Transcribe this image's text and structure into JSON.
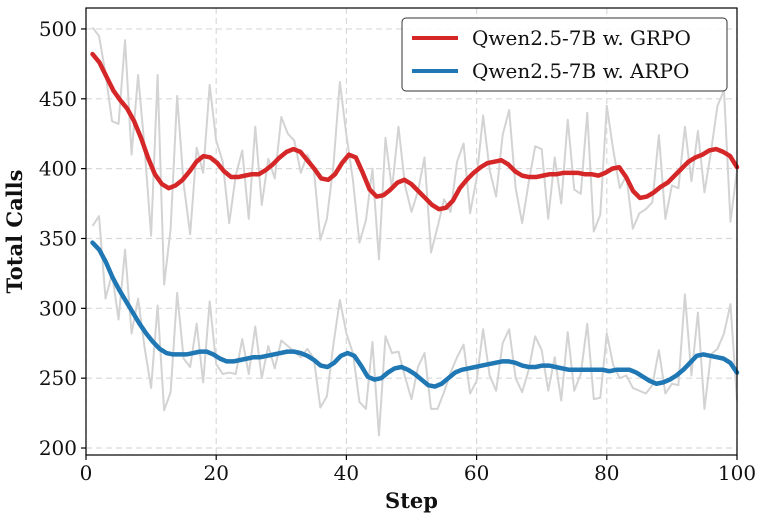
{
  "chart_data": {
    "type": "line",
    "xlabel": "Step",
    "ylabel": "Total Calls",
    "xlim": [
      0,
      100
    ],
    "ylim": [
      195,
      515
    ],
    "xticks": [
      0,
      20,
      40,
      60,
      80,
      100
    ],
    "yticks": [
      200,
      250,
      300,
      350,
      400,
      450,
      500
    ],
    "grid": true,
    "legend_position": "top-right",
    "raw_color": "#d3d3d3",
    "series": [
      {
        "name": "Qwen2.5-7B w. GRPO",
        "color": "#d62728",
        "smoothed": [
          482,
          476,
          466,
          456,
          449,
          443,
          434,
          422,
          408,
          396,
          389,
          386,
          388,
          392,
          398,
          405,
          409,
          408,
          404,
          398,
          394,
          394,
          395,
          396,
          396,
          399,
          403,
          408,
          412,
          414,
          412,
          406,
          400,
          393,
          392,
          396,
          404,
          410,
          408,
          397,
          385,
          380,
          381,
          385,
          390,
          392,
          389,
          384,
          379,
          374,
          371,
          372,
          377,
          386,
          392,
          397,
          401,
          404,
          405,
          406,
          403,
          398,
          395,
          394,
          394,
          395,
          396,
          396,
          397,
          397,
          397,
          396,
          396,
          395,
          397,
          400,
          401,
          394,
          384,
          379,
          380,
          383,
          387,
          390,
          395,
          400,
          405,
          408,
          410,
          413,
          414,
          412,
          409,
          401
        ],
        "raw_x": [
          1,
          2,
          3,
          4,
          5,
          6,
          7,
          8,
          9,
          10,
          11,
          12,
          13,
          14,
          15,
          16,
          17,
          18,
          19,
          20,
          21,
          22,
          23,
          24,
          25,
          26,
          27,
          28,
          29,
          30,
          31,
          32,
          33,
          34,
          35,
          36,
          37,
          38,
          39,
          40,
          41,
          42,
          43,
          44,
          45,
          46,
          47,
          48,
          49,
          50,
          51,
          52,
          53,
          54,
          55,
          56,
          57,
          58,
          59,
          60,
          61,
          62,
          63,
          64,
          65,
          66,
          67,
          68,
          69,
          70,
          71,
          72,
          73,
          74,
          75,
          76,
          77,
          78,
          79,
          80,
          81,
          82,
          83,
          84,
          85,
          86,
          87,
          88,
          89,
          90,
          91,
          92,
          93,
          94,
          95,
          96,
          97,
          98,
          99,
          100
        ],
        "raw": [
          501,
          495,
          468,
          434,
          432,
          492,
          410,
          467,
          415,
          352,
          467,
          317,
          357,
          452,
          389,
          353,
          415,
          397,
          460,
          420,
          405,
          361,
          395,
          413,
          364,
          430,
          374,
          407,
          393,
          437,
          425,
          420,
          397,
          410,
          400,
          349,
          364,
          402,
          462,
          424,
          392,
          347,
          363,
          400,
          335,
          422,
          385,
          430,
          388,
          369,
          384,
          408,
          340,
          358,
          378,
          369,
          405,
          418,
          368,
          393,
          438,
          399,
          380,
          424,
          442,
          386,
          361,
          390,
          416,
          414,
          364,
          408,
          375,
          435,
          385,
          382,
          440,
          355,
          367,
          445,
          413,
          386,
          395,
          357,
          368,
          371,
          376,
          424,
          364,
          388,
          386,
          430,
          391,
          427,
          383,
          412,
          445,
          456,
          362,
          399
        ]
      },
      {
        "name": "Qwen2.5-7B w. ARPO",
        "color": "#1f77b4",
        "smoothed": [
          347,
          342,
          333,
          322,
          313,
          305,
          297,
          289,
          282,
          276,
          271,
          268,
          267,
          267,
          267,
          268,
          269,
          269,
          267,
          264,
          262,
          262,
          263,
          264,
          265,
          265,
          266,
          267,
          268,
          269,
          269,
          268,
          266,
          263,
          259,
          258,
          261,
          266,
          268,
          266,
          259,
          251,
          249,
          250,
          254,
          257,
          258,
          256,
          253,
          249,
          245,
          244,
          246,
          250,
          254,
          256,
          257,
          258,
          259,
          260,
          261,
          262,
          262,
          261,
          259,
          258,
          258,
          259,
          259,
          258,
          257,
          256,
          256,
          256,
          256,
          256,
          256,
          255,
          256,
          256,
          256,
          254,
          251,
          248,
          246,
          247,
          249,
          252,
          256,
          261,
          266,
          267,
          266,
          265,
          264,
          261,
          254
        ],
        "raw_x": [
          1,
          2,
          3,
          4,
          5,
          6,
          7,
          8,
          9,
          10,
          11,
          12,
          13,
          14,
          15,
          16,
          17,
          18,
          19,
          20,
          21,
          22,
          23,
          24,
          25,
          26,
          27,
          28,
          29,
          30,
          31,
          32,
          33,
          34,
          35,
          36,
          37,
          38,
          39,
          40,
          41,
          42,
          43,
          44,
          45,
          46,
          47,
          48,
          49,
          50,
          51,
          52,
          53,
          54,
          55,
          56,
          57,
          58,
          59,
          60,
          61,
          62,
          63,
          64,
          65,
          66,
          67,
          68,
          69,
          70,
          71,
          72,
          73,
          74,
          75,
          76,
          77,
          78,
          79,
          80,
          81,
          82,
          83,
          84,
          85,
          86,
          87,
          88,
          89,
          90,
          91,
          92,
          93,
          94,
          95,
          96,
          97,
          98,
          99,
          100
        ],
        "raw": [
          359,
          366,
          307,
          325,
          292,
          342,
          282,
          307,
          272,
          243,
          302,
          227,
          240,
          311,
          264,
          258,
          289,
          247,
          305,
          260,
          253,
          254,
          253,
          278,
          253,
          287,
          250,
          273,
          257,
          277,
          273,
          269,
          265,
          271,
          264,
          229,
          237,
          274,
          306,
          282,
          268,
          233,
          228,
          276,
          209,
          280,
          268,
          269,
          251,
          235,
          258,
          268,
          228,
          228,
          240,
          254,
          265,
          274,
          239,
          248,
          285,
          252,
          241,
          275,
          285,
          250,
          240,
          256,
          280,
          270,
          241,
          265,
          234,
          283,
          241,
          253,
          289,
          235,
          236,
          282,
          259,
          250,
          252,
          243,
          241,
          239,
          245,
          270,
          239,
          246,
          245,
          310,
          252,
          297,
          228,
          267,
          271,
          282,
          303,
          234
        ]
      }
    ]
  }
}
